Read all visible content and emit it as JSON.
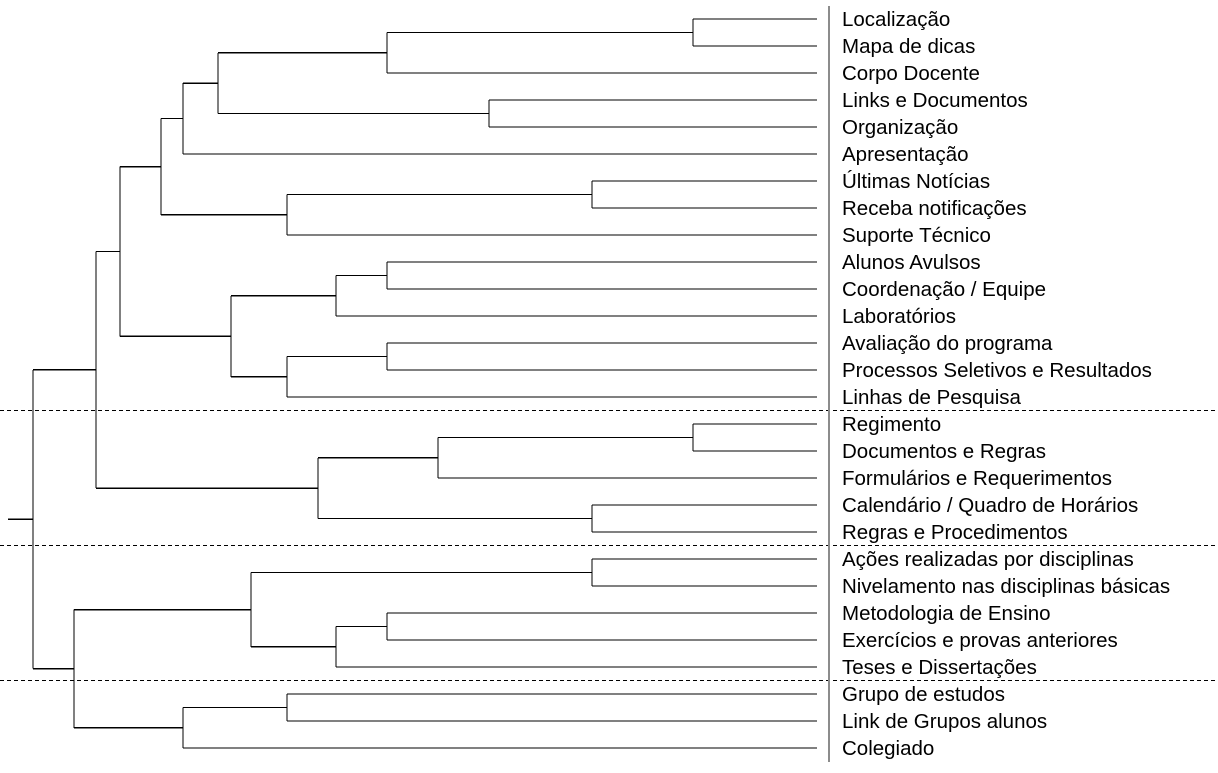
{
  "dendrogram": {
    "leaves": [
      "Localização",
      "Mapa de dicas",
      "Corpo Docente",
      "Links e Documentos",
      "Organização",
      "Apresentação",
      "Últimas Notícias",
      "Receba notificações",
      "Suporte Técnico",
      "Alunos Avulsos",
      "Coordenação / Equipe",
      "Laboratórios",
      "Avaliação do programa",
      "Processos Seletivos e Resultados",
      "Linhas de Pesquisa",
      "Regimento",
      "Documentos e Regras",
      "Formulários e Requerimentos",
      "Calendário / Quadro de Horários",
      "Regras e Procedimentos",
      "Ações realizadas por disciplinas",
      "Nivelamento nas disciplinas básicas",
      "Metodologia de Ensino",
      "Exercícios e provas anteriores",
      "Teses e Dissertações",
      "Grupo de estudos",
      "Link de Grupos alunos",
      "Colegiado"
    ],
    "cluster_breaks_after_leaf": [
      15,
      20,
      25
    ],
    "colors": {
      "lines": "#000000",
      "axis": "#8c8c8c",
      "background": "#ffffff"
    }
  }
}
